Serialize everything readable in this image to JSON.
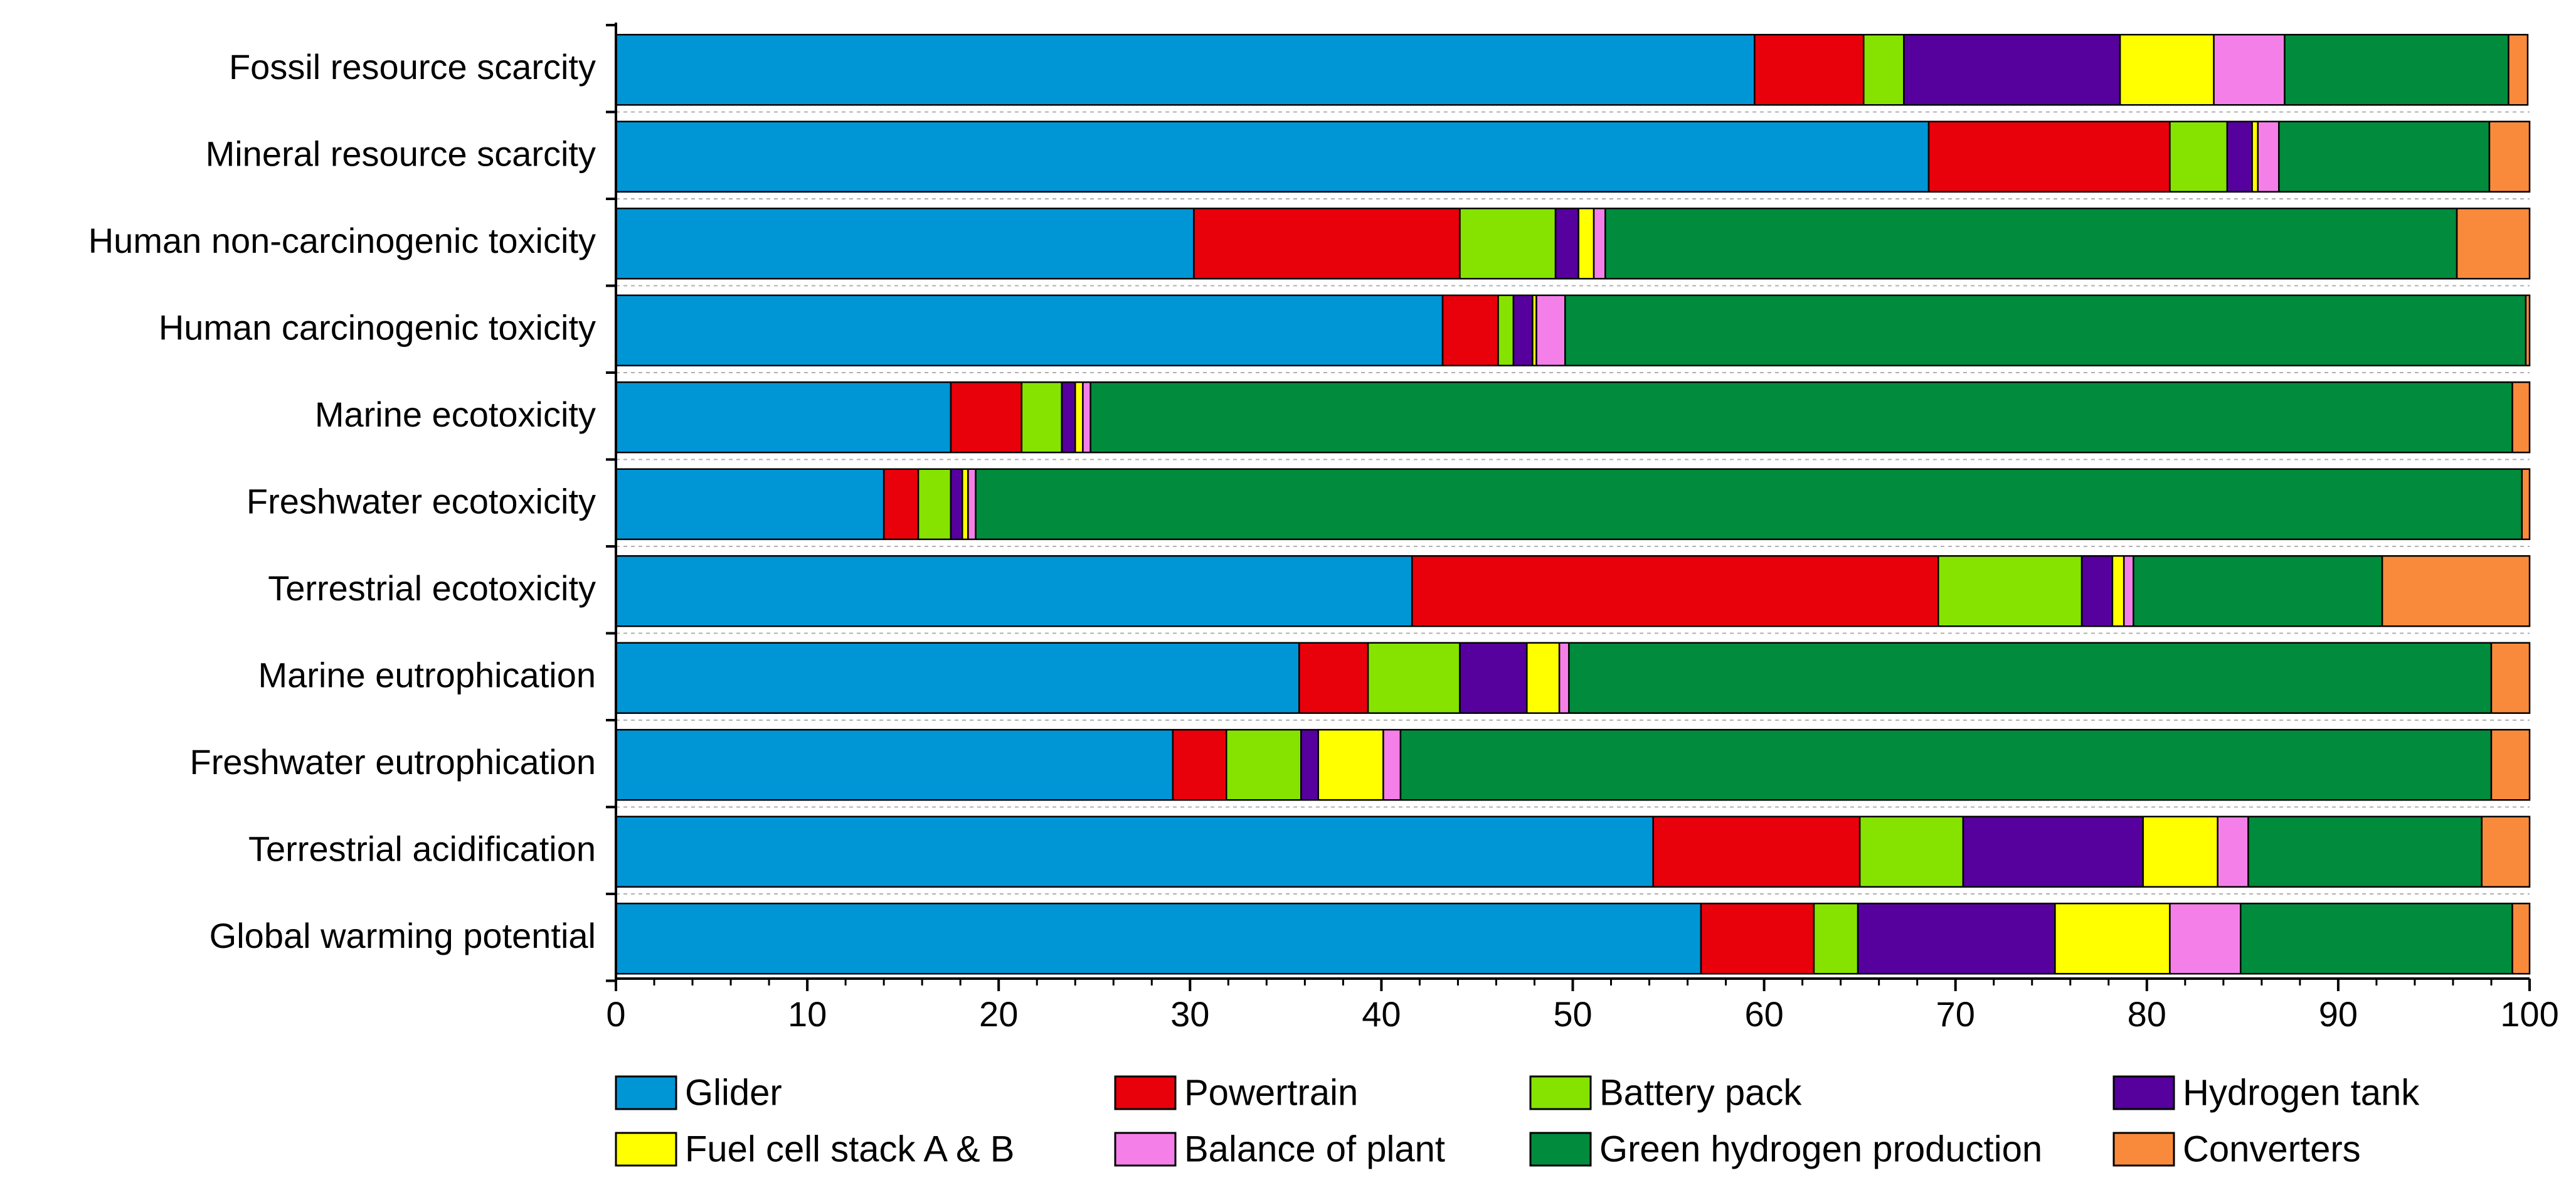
{
  "chart_data": {
    "type": "bar",
    "orientation": "horizontal",
    "stacked": true,
    "title": "",
    "xlabel": "",
    "ylabel": "",
    "xlim": [
      0,
      100
    ],
    "x_ticks": [
      "0",
      "10",
      "20",
      "30",
      "40",
      "50",
      "60",
      "70",
      "80",
      "90",
      "100"
    ],
    "grid": false,
    "legend_position": "bottom",
    "categories": [
      "Fossil resource scarcity",
      "Mineral resource scarcity",
      "Human non-carcinogenic toxicity",
      "Human carcinogenic toxicity",
      "Marine ecotoxicity",
      "Freshwater ecotoxicity",
      "Terrestrial ecotoxicity",
      "Marine eutrophication",
      "Freshwater eutrophication",
      "Terrestrial acidification",
      "Global warming potential"
    ],
    "series": [
      {
        "name": "Glider",
        "color": "#0096D6",
        "values": [
          59.5,
          68.6,
          30.2,
          43.2,
          17.5,
          14.0,
          41.6,
          35.7,
          29.1,
          54.2,
          56.7
        ]
      },
      {
        "name": "Powertrain",
        "color": "#E8000B",
        "values": [
          5.7,
          12.6,
          13.9,
          2.9,
          3.7,
          1.8,
          27.5,
          3.6,
          2.8,
          10.8,
          5.9
        ]
      },
      {
        "name": "Battery pack",
        "color": "#86E300",
        "values": [
          2.1,
          3.0,
          5.0,
          0.8,
          2.1,
          1.7,
          7.5,
          4.8,
          3.9,
          5.4,
          2.3
        ]
      },
      {
        "name": "Hydrogen tank",
        "color": "#56009E",
        "values": [
          11.3,
          1.3,
          1.2,
          1.0,
          0.7,
          0.6,
          1.6,
          3.5,
          0.9,
          9.4,
          10.3
        ]
      },
      {
        "name": "Fuel cell stack A & B",
        "color": "#FFFF00",
        "values": [
          4.9,
          0.3,
          0.8,
          0.2,
          0.4,
          0.3,
          0.6,
          1.7,
          3.4,
          3.9,
          6.0
        ]
      },
      {
        "name": "Balance of plant",
        "color": "#F47FE8",
        "values": [
          3.7,
          1.1,
          0.6,
          1.5,
          0.4,
          0.4,
          0.5,
          0.5,
          0.9,
          1.6,
          3.7
        ]
      },
      {
        "name": "Green hydrogen production",
        "color": "#008C3C",
        "values": [
          11.7,
          11.0,
          44.5,
          50.2,
          74.3,
          80.8,
          13.0,
          48.2,
          57.0,
          12.2,
          14.2
        ]
      },
      {
        "name": "Converters",
        "color": "#F98A3C",
        "values": [
          1.0,
          2.1,
          3.8,
          0.2,
          0.9,
          0.4,
          7.7,
          2.0,
          2.0,
          2.5,
          0.9
        ]
      }
    ]
  }
}
